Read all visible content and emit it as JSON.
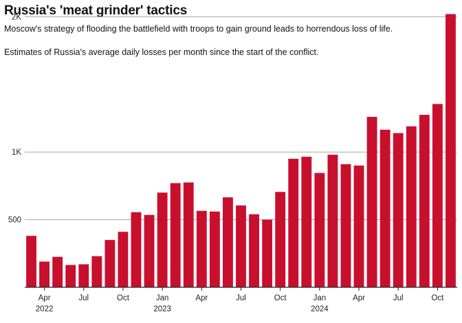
{
  "title": "Russia's 'meat grinder' tactics",
  "subtitle": "Moscow's strategy of flooding the battlefield with troops to gain ground leads to horrendous loss of life.",
  "description": "Estimates of Russia's average daily losses per month since the start of the conflict.",
  "chart_data": {
    "type": "bar",
    "color": "#c8102e",
    "categories": [
      "2022-03",
      "2022-04",
      "2022-05",
      "2022-06",
      "2022-07",
      "2022-08",
      "2022-09",
      "2022-10",
      "2022-11",
      "2022-12",
      "2023-01",
      "2023-02",
      "2023-03",
      "2023-04",
      "2023-05",
      "2023-06",
      "2023-07",
      "2023-08",
      "2023-09",
      "2023-10",
      "2023-11",
      "2023-12",
      "2024-01",
      "2024-02",
      "2024-03",
      "2024-04",
      "2024-05",
      "2024-06",
      "2024-07",
      "2024-08",
      "2024-09",
      "2024-10",
      "2024-11"
    ],
    "values": [
      380,
      190,
      225,
      165,
      170,
      230,
      350,
      410,
      555,
      535,
      700,
      770,
      775,
      565,
      560,
      665,
      605,
      540,
      500,
      705,
      950,
      965,
      845,
      980,
      910,
      900,
      1260,
      1165,
      1140,
      1190,
      1275,
      1355,
      2020
    ],
    "ylim": [
      0,
      2100
    ],
    "yticks": [
      {
        "value": 500,
        "label": "500"
      },
      {
        "value": 1000,
        "label": "1K"
      },
      {
        "value": 2000,
        "label": "2K"
      }
    ],
    "xticks": [
      {
        "index": 1,
        "label": "Apr",
        "year": "2022"
      },
      {
        "index": 4,
        "label": "Jul",
        "year": ""
      },
      {
        "index": 7,
        "label": "Oct",
        "year": ""
      },
      {
        "index": 10,
        "label": "Jan",
        "year": "2023"
      },
      {
        "index": 13,
        "label": "Apr",
        "year": ""
      },
      {
        "index": 16,
        "label": "Jul",
        "year": ""
      },
      {
        "index": 19,
        "label": "Oct",
        "year": ""
      },
      {
        "index": 22,
        "label": "Jan",
        "year": "2024"
      },
      {
        "index": 25,
        "label": "Apr",
        "year": ""
      },
      {
        "index": 28,
        "label": "Jul",
        "year": ""
      },
      {
        "index": 31,
        "label": "Oct",
        "year": ""
      }
    ],
    "grid": true
  }
}
